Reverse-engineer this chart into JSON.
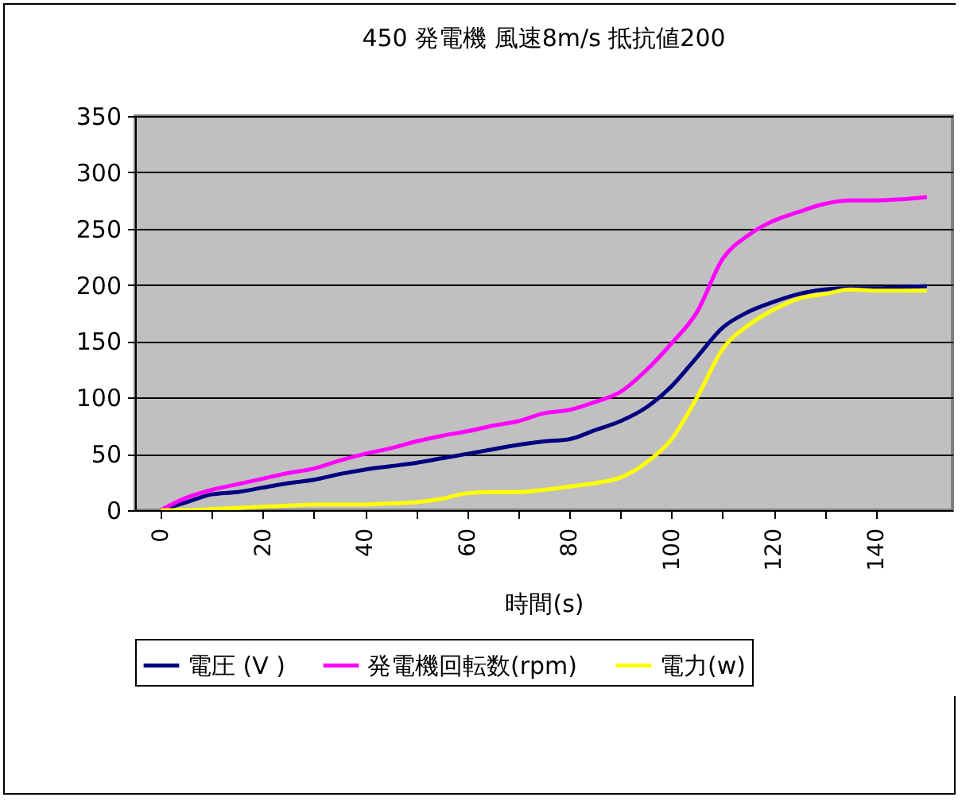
{
  "chart_data": {
    "type": "line",
    "title": "450 発電機  風速8m/s  抵抗値200",
    "xlabel": "時間(s)",
    "x": [
      0,
      5,
      10,
      15,
      20,
      25,
      30,
      35,
      40,
      45,
      50,
      55,
      60,
      65,
      70,
      75,
      80,
      85,
      90,
      95,
      100,
      105,
      110,
      115,
      120,
      125,
      130,
      135,
      140,
      145,
      150
    ],
    "series": [
      {
        "name": "電圧 (V )",
        "color": "#000080",
        "values": [
          0,
          7,
          14,
          16,
          20,
          24,
          27,
          32,
          36,
          39,
          42,
          46,
          50,
          54,
          58,
          61,
          63,
          71,
          79,
          91,
          110,
          136,
          162,
          176,
          185,
          192,
          196,
          197,
          197,
          198,
          199
        ]
      },
      {
        "name": "発電機回転数(rpm)",
        "color": "#ff00ff",
        "values": [
          0,
          11,
          18,
          23,
          28,
          33,
          37,
          44,
          50,
          55,
          61,
          66,
          70,
          75,
          79,
          86,
          89,
          96,
          105,
          124,
          148,
          176,
          223,
          244,
          257,
          265,
          272,
          275,
          275,
          276,
          278
        ]
      },
      {
        "name": "電力(w)",
        "color": "#ffff00",
        "values": [
          0,
          0,
          1,
          2,
          3,
          4,
          5,
          5,
          5,
          6,
          7,
          10,
          15,
          16,
          16,
          18,
          21,
          24,
          29,
          42,
          63,
          100,
          143,
          164,
          178,
          188,
          192,
          196,
          195,
          195,
          195
        ]
      }
    ],
    "xlim": [
      -5,
      155
    ],
    "xticks": [
      0,
      {
        "value": 10,
        "label": null
      },
      20,
      {
        "value": 30,
        "label": null
      },
      40,
      {
        "value": 50,
        "label": null
      },
      60,
      {
        "value": 70,
        "label": null
      },
      80,
      {
        "value": 90,
        "label": null
      },
      100,
      {
        "value": 110,
        "label": null
      },
      120,
      {
        "value": 130,
        "label": null
      },
      140
    ],
    "ylim": [
      0,
      350
    ],
    "yticks": [
      0,
      50,
      100,
      150,
      200,
      250,
      300,
      350
    ],
    "grid": "y",
    "legend": "bottom",
    "marker": "none",
    "line_style": "solid"
  }
}
